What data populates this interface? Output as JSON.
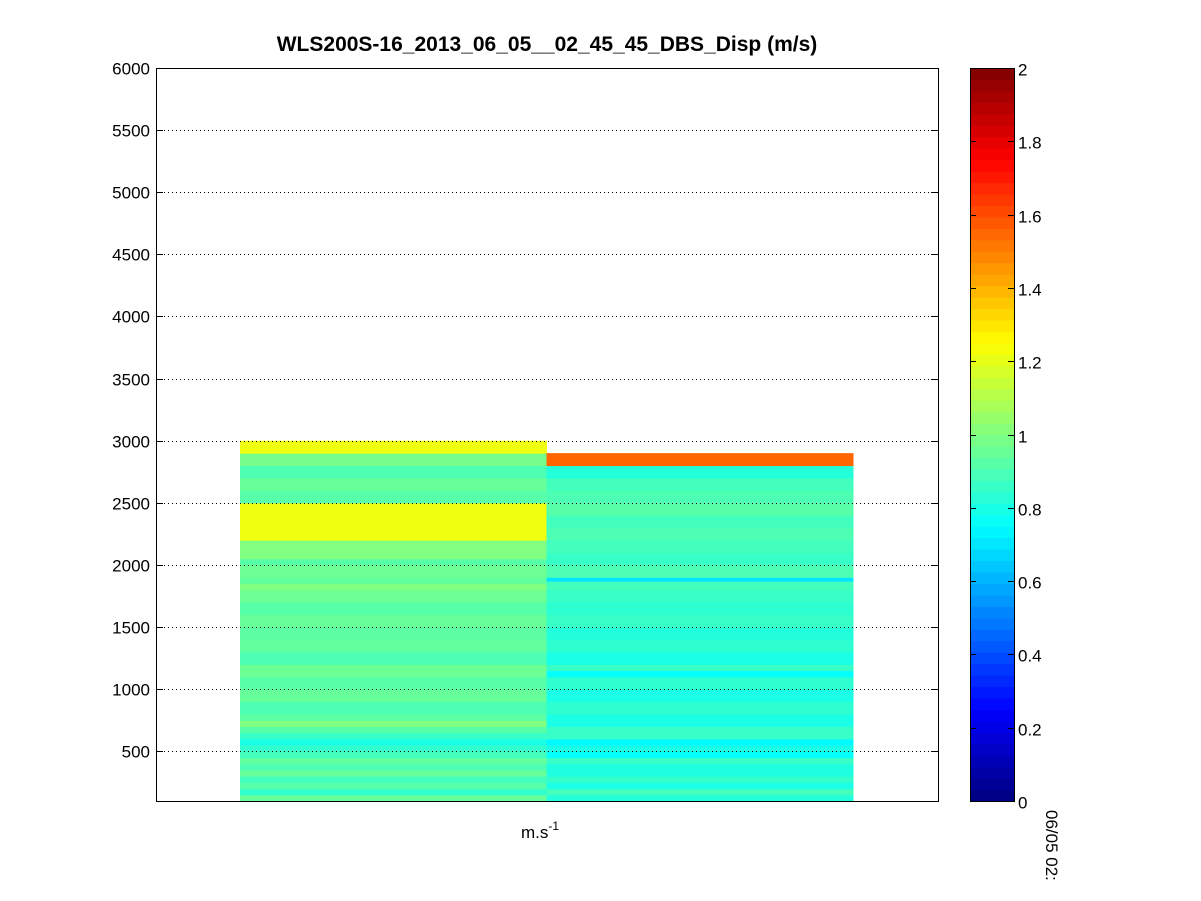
{
  "chart_data": {
    "type": "heatmap",
    "title": "WLS200S-16_2013_06_05__02_45_45_DBS_Disp (m/s)",
    "xlabel_base": "m.s",
    "xlabel_exponent": "-1",
    "time_label": "06/05 02:",
    "ylim": [
      100,
      6000
    ],
    "yticks": [
      500,
      1000,
      1500,
      2000,
      2500,
      3000,
      3500,
      4000,
      4500,
      5000,
      5500,
      6000
    ],
    "grid": true,
    "colormap": "jet",
    "clim": [
      0,
      2
    ],
    "colorbar_ticks": [
      0,
      0.2,
      0.4,
      0.6,
      0.8,
      1,
      1.2,
      1.4,
      1.6,
      1.8,
      2
    ],
    "columns": [
      {
        "segments": [
          {
            "from": 100,
            "to": 150,
            "value": 0.95
          },
          {
            "from": 150,
            "to": 200,
            "value": 0.85
          },
          {
            "from": 200,
            "to": 250,
            "value": 0.92
          },
          {
            "from": 250,
            "to": 300,
            "value": 0.88
          },
          {
            "from": 300,
            "to": 350,
            "value": 0.95
          },
          {
            "from": 350,
            "to": 400,
            "value": 0.9
          },
          {
            "from": 400,
            "to": 450,
            "value": 0.94
          },
          {
            "from": 450,
            "to": 500,
            "value": 0.88
          },
          {
            "from": 500,
            "to": 550,
            "value": 0.85
          },
          {
            "from": 550,
            "to": 600,
            "value": 0.8
          },
          {
            "from": 600,
            "to": 650,
            "value": 0.86
          },
          {
            "from": 650,
            "to": 700,
            "value": 0.92
          },
          {
            "from": 700,
            "to": 750,
            "value": 1.0
          },
          {
            "from": 750,
            "to": 800,
            "value": 0.93
          },
          {
            "from": 800,
            "to": 900,
            "value": 0.9
          },
          {
            "from": 900,
            "to": 1000,
            "value": 0.95
          },
          {
            "from": 1000,
            "to": 1100,
            "value": 0.92
          },
          {
            "from": 1100,
            "to": 1200,
            "value": 0.96
          },
          {
            "from": 1200,
            "to": 1300,
            "value": 0.9
          },
          {
            "from": 1300,
            "to": 1400,
            "value": 0.94
          },
          {
            "from": 1400,
            "to": 1500,
            "value": 0.93
          },
          {
            "from": 1500,
            "to": 1600,
            "value": 0.95
          },
          {
            "from": 1600,
            "to": 1700,
            "value": 0.92
          },
          {
            "from": 1700,
            "to": 1800,
            "value": 0.96
          },
          {
            "from": 1800,
            "to": 1850,
            "value": 1.0
          },
          {
            "from": 1850,
            "to": 1900,
            "value": 0.94
          },
          {
            "from": 1900,
            "to": 2000,
            "value": 0.96
          },
          {
            "from": 2000,
            "to": 2050,
            "value": 0.92
          },
          {
            "from": 2050,
            "to": 2200,
            "value": 1.0
          },
          {
            "from": 2200,
            "to": 2500,
            "value": 1.22
          },
          {
            "from": 2500,
            "to": 2600,
            "value": 0.92
          },
          {
            "from": 2600,
            "to": 2700,
            "value": 0.95
          },
          {
            "from": 2700,
            "to": 2800,
            "value": 0.9
          },
          {
            "from": 2800,
            "to": 2900,
            "value": 0.98
          },
          {
            "from": 2900,
            "to": 3000,
            "value": 1.22
          }
        ]
      },
      {
        "segments": [
          {
            "from": 100,
            "to": 150,
            "value": 0.82
          },
          {
            "from": 150,
            "to": 200,
            "value": 0.88
          },
          {
            "from": 200,
            "to": 250,
            "value": 0.8
          },
          {
            "from": 250,
            "to": 300,
            "value": 0.85
          },
          {
            "from": 300,
            "to": 400,
            "value": 0.81
          },
          {
            "from": 400,
            "to": 450,
            "value": 0.86
          },
          {
            "from": 450,
            "to": 500,
            "value": 0.76
          },
          {
            "from": 500,
            "to": 550,
            "value": 0.8
          },
          {
            "from": 550,
            "to": 600,
            "value": 0.74
          },
          {
            "from": 600,
            "to": 700,
            "value": 0.86
          },
          {
            "from": 700,
            "to": 800,
            "value": 0.8
          },
          {
            "from": 800,
            "to": 900,
            "value": 0.84
          },
          {
            "from": 900,
            "to": 1000,
            "value": 0.8
          },
          {
            "from": 1000,
            "to": 1100,
            "value": 0.84
          },
          {
            "from": 1100,
            "to": 1150,
            "value": 0.76
          },
          {
            "from": 1150,
            "to": 1200,
            "value": 0.86
          },
          {
            "from": 1200,
            "to": 1300,
            "value": 0.8
          },
          {
            "from": 1300,
            "to": 1400,
            "value": 0.84
          },
          {
            "from": 1400,
            "to": 1500,
            "value": 0.82
          },
          {
            "from": 1500,
            "to": 1600,
            "value": 0.86
          },
          {
            "from": 1600,
            "to": 1700,
            "value": 0.84
          },
          {
            "from": 1700,
            "to": 1800,
            "value": 0.86
          },
          {
            "from": 1800,
            "to": 1870,
            "value": 0.88
          },
          {
            "from": 1870,
            "to": 1900,
            "value": 0.7
          },
          {
            "from": 1900,
            "to": 2000,
            "value": 0.9
          },
          {
            "from": 2000,
            "to": 2100,
            "value": 0.86
          },
          {
            "from": 2100,
            "to": 2200,
            "value": 0.88
          },
          {
            "from": 2200,
            "to": 2300,
            "value": 0.9
          },
          {
            "from": 2300,
            "to": 2400,
            "value": 0.88
          },
          {
            "from": 2400,
            "to": 2500,
            "value": 0.92
          },
          {
            "from": 2500,
            "to": 2600,
            "value": 0.9
          },
          {
            "from": 2600,
            "to": 2700,
            "value": 0.88
          },
          {
            "from": 2700,
            "to": 2800,
            "value": 0.82
          },
          {
            "from": 2800,
            "to": 2900,
            "value": 1.55
          }
        ]
      }
    ]
  }
}
